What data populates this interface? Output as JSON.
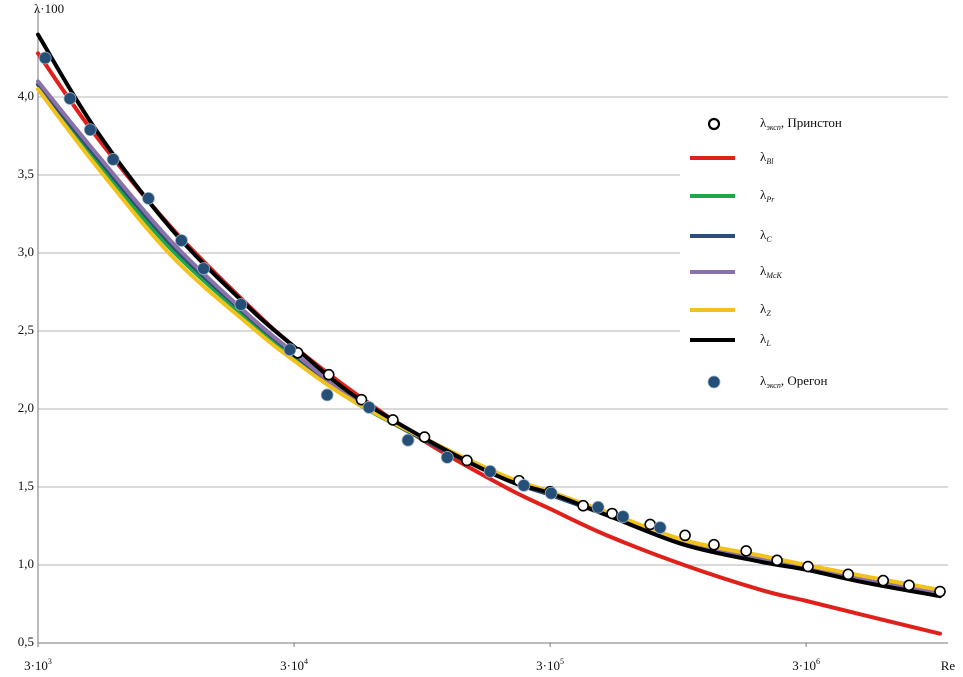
{
  "chart_data": {
    "type": "line",
    "y_label": "λ·100",
    "x_label": "Re",
    "xscale": "log",
    "xlim": [
      3000,
      10000000
    ],
    "ylim": [
      0.5,
      4.5
    ],
    "grid": true,
    "legend": "right",
    "xticks": [
      {
        "value": 3000,
        "label": "3·10",
        "power": "3"
      },
      {
        "value": 30000,
        "label": "3·10",
        "power": "4"
      },
      {
        "value": 300000,
        "label": "3·10",
        "power": "5"
      },
      {
        "value": 3000000,
        "label": "3·10",
        "power": "6"
      }
    ],
    "yticks": [
      {
        "value": 0.5,
        "label": "0,5"
      },
      {
        "value": 1,
        "label": "1,0"
      },
      {
        "value": 1.5,
        "label": "1,5"
      },
      {
        "value": 2,
        "label": "2,0"
      },
      {
        "value": 2.5,
        "label": "2,5"
      },
      {
        "value": 3,
        "label": "3,0"
      },
      {
        "value": 3.5,
        "label": "3,5"
      },
      {
        "value": 4,
        "label": "4,0"
      }
    ],
    "x": [
      3000,
      5000,
      10000,
      20000,
      30000,
      50000,
      100000,
      200000,
      300000,
      500000,
      1000000,
      2000000,
      3000000,
      5000000,
      10000000
    ],
    "series": [
      {
        "kind": "scatter",
        "marker": "open",
        "name": "λ",
        "name_sub": "эксп",
        "name_suffix": ", Принстон",
        "color": "#000000",
        "x": [
          31000,
          41000,
          55000,
          73000,
          97000,
          142000,
          175000,
          227000,
          300000,
          404000,
          524000,
          738000,
          1010000,
          1310000,
          1750000,
          2310000,
          3050000,
          4380000,
          6000000,
          7570000,
          10000000
        ],
        "values": [
          2.36,
          2.22,
          2.06,
          1.93,
          1.82,
          1.67,
          1.6,
          1.54,
          1.47,
          1.38,
          1.33,
          1.26,
          1.19,
          1.13,
          1.09,
          1.03,
          0.99,
          0.94,
          0.9,
          0.87,
          0.83
        ]
      },
      {
        "kind": "line",
        "name": "λ",
        "name_sub": "Bl",
        "color": "#e0201b",
        "values": [
          4.28,
          3.76,
          3.16,
          2.66,
          2.4,
          2.12,
          1.78,
          1.5,
          1.36,
          1.19,
          1.0,
          0.84,
          0.77,
          0.68,
          0.56
        ]
      },
      {
        "kind": "line",
        "name": "λ",
        "name_sub": "Pr",
        "color": "#1fa64a",
        "values": [
          4.08,
          3.6,
          3.02,
          2.57,
          2.33,
          2.06,
          1.79,
          1.55,
          1.45,
          1.32,
          1.14,
          1.03,
          0.98,
          0.9,
          0.82
        ]
      },
      {
        "kind": "line",
        "name": "λ",
        "name_sub": "C",
        "color": "#2b4f7a",
        "values": [
          4.08,
          3.63,
          3.05,
          2.59,
          2.35,
          2.07,
          1.79,
          1.55,
          1.45,
          1.32,
          1.14,
          1.03,
          0.97,
          0.9,
          0.81
        ]
      },
      {
        "kind": "line",
        "name": "λ",
        "name_sub": "McK",
        "color": "#8a72a8",
        "values": [
          4.1,
          3.65,
          3.07,
          2.6,
          2.36,
          2.08,
          1.8,
          1.56,
          1.46,
          1.33,
          1.15,
          1.04,
          0.98,
          0.91,
          0.82
        ]
      },
      {
        "kind": "line",
        "name": "λ",
        "name_sub": "Z",
        "color": "#f2c21b",
        "values": [
          4.05,
          3.57,
          2.98,
          2.54,
          2.31,
          2.06,
          1.8,
          1.57,
          1.47,
          1.34,
          1.16,
          1.06,
          1.0,
          0.93,
          0.84
        ]
      },
      {
        "kind": "line",
        "name": "λ",
        "name_sub": "L",
        "color": "#000000",
        "values": [
          4.4,
          3.8,
          3.15,
          2.65,
          2.4,
          2.1,
          1.8,
          1.55,
          1.46,
          1.32,
          1.13,
          1.02,
          0.97,
          0.89,
          0.8
        ]
      },
      {
        "kind": "scatter",
        "marker": "filled",
        "name": "λ",
        "name_sub": "эксп",
        "name_suffix": ", Орегон",
        "color": "#264f78",
        "x": [
          3200,
          4000,
          4800,
          5900,
          8100,
          10900,
          13300,
          18600,
          28900,
          40400,
          58900,
          83600,
          119000,
          175000,
          237000,
          303000,
          462000,
          578000,
          807000
        ],
        "values": [
          4.25,
          3.99,
          3.79,
          3.6,
          3.35,
          3.08,
          2.9,
          2.67,
          2.38,
          2.09,
          2.01,
          1.8,
          1.69,
          1.6,
          1.51,
          1.46,
          1.37,
          1.31,
          1.24
        ]
      }
    ]
  }
}
